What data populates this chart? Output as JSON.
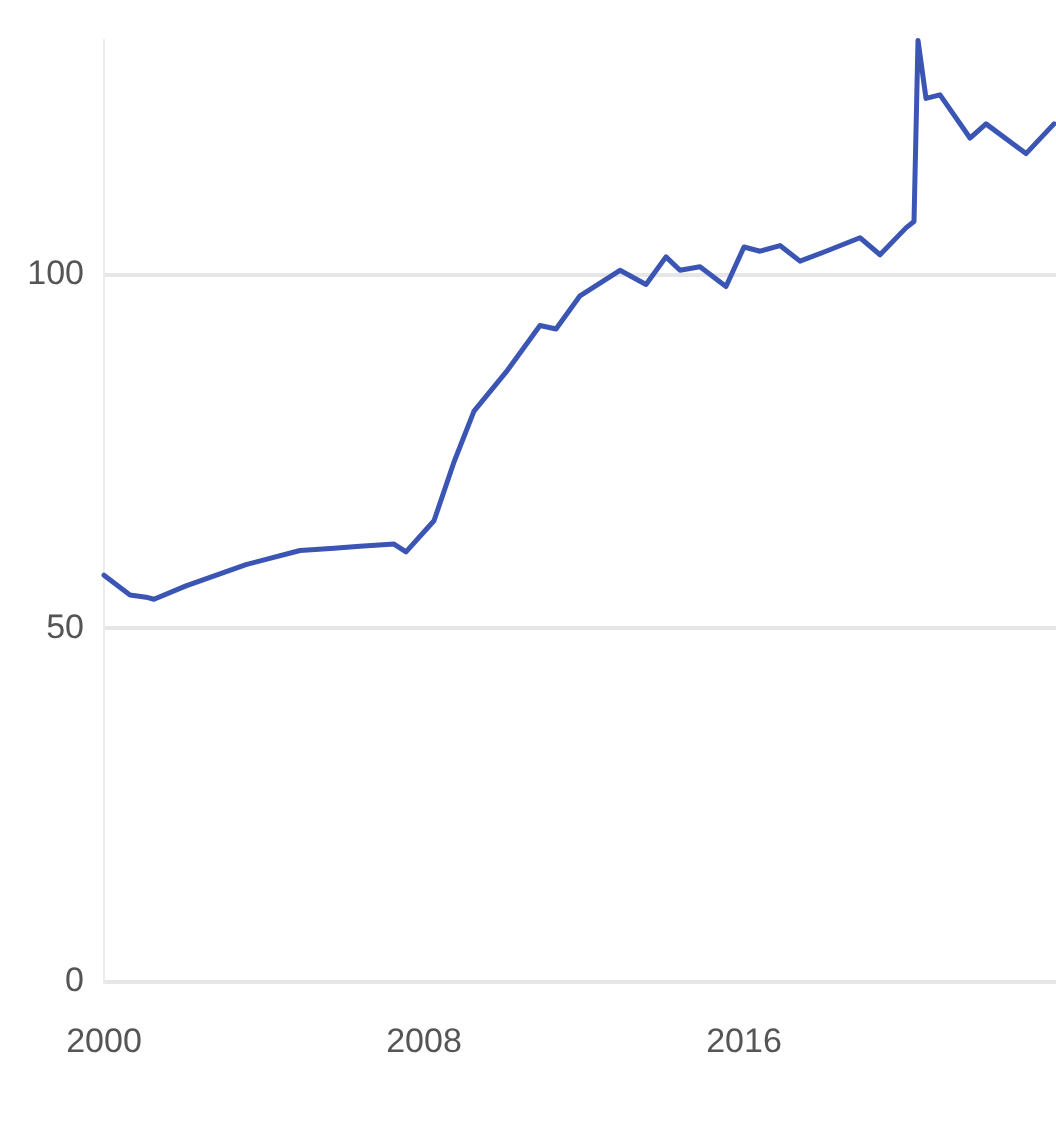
{
  "chart_data": {
    "type": "line",
    "x": [
      2000.0,
      2000.65,
      2001.05,
      2001.25,
      2002.05,
      2003.55,
      2004.9,
      2005.75,
      2006.4,
      2007.25,
      2007.55,
      2008.25,
      2008.75,
      2009.25,
      2010.05,
      2010.9,
      2011.3,
      2011.9,
      2012.9,
      2013.55,
      2014.05,
      2014.4,
      2014.9,
      2015.55,
      2016.0,
      2016.4,
      2016.9,
      2017.4,
      2018.05,
      2018.9,
      2019.4,
      2020.05,
      2020.25,
      2020.35,
      2020.55,
      2020.9,
      2021.65,
      2022.05,
      2023.05,
      2023.75
    ],
    "series": [
      {
        "color": "#3a55b4",
        "values": [
          57.5,
          54.7,
          54.4,
          54.1,
          56,
          59,
          61,
          61.3,
          61.6,
          61.9,
          60.8,
          65.2,
          73.5,
          80.7,
          86.2,
          92.8,
          92.3,
          97,
          100.6,
          98.6,
          102.5,
          100.6,
          101.1,
          98.3,
          103.9,
          103.3,
          104.1,
          101.9,
          103.3,
          105.2,
          102.8,
          106.6,
          107.5,
          133.1,
          124.9,
          125.4,
          119.3,
          121.3,
          117.1,
          121.3
        ]
      }
    ],
    "xlim": [
      2000,
      2023.8
    ],
    "xticks": [
      2000,
      2008,
      2016
    ],
    "ylim": [
      0,
      133.1
    ],
    "yticks": [
      0,
      50,
      100
    ],
    "grid": "y",
    "legend": false,
    "marker": "none",
    "line_style": "solid"
  }
}
